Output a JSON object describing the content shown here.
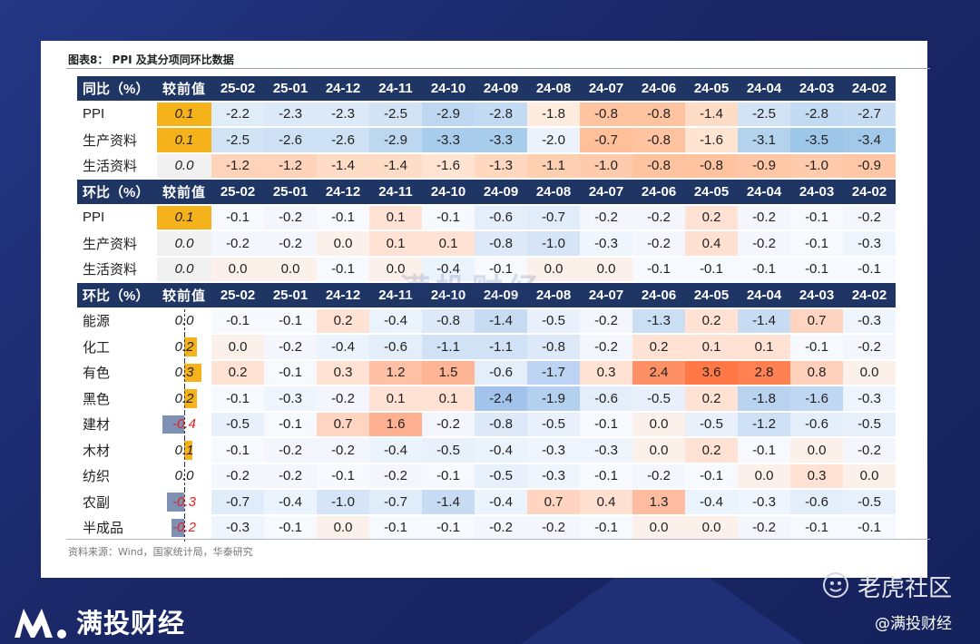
{
  "figure_title": "图表8：  PPI 及其分项同环比数据",
  "source_note": "资料来源：Wind，国家统计局，华泰研究",
  "watermark": "满投财经",
  "brand_name": "满投财经",
  "corner_logo_text": "老虎社区",
  "corner_handle": "@满投财经",
  "colors": {
    "header_bg": "#1f3564",
    "positive_prev": "#f6b21b",
    "negative_prev": "#7e90b4",
    "negative_text": "#e02020"
  },
  "chart_data": {
    "type": "table",
    "columns": [
      "25-02",
      "25-01",
      "24-12",
      "24-11",
      "24-10",
      "24-09",
      "24-08",
      "24-07",
      "24-06",
      "24-05",
      "24-04",
      "24-03",
      "24-02"
    ],
    "sections": [
      {
        "header": "同比（%）",
        "prev_label": "较前值",
        "rows": [
          {
            "label": "PPI",
            "prev": "0.1",
            "values": [
              -2.2,
              -2.3,
              -2.3,
              -2.5,
              -2.9,
              -2.8,
              -1.8,
              -0.8,
              -0.8,
              -1.4,
              -2.5,
              -2.8,
              -2.7
            ]
          },
          {
            "label": "生产资料",
            "prev": "0.1",
            "values": [
              -2.5,
              -2.6,
              -2.6,
              -2.9,
              -3.3,
              -3.3,
              -2.0,
              -0.7,
              -0.8,
              -1.6,
              -3.1,
              -3.5,
              -3.4
            ]
          },
          {
            "label": "生活资料",
            "prev": "0.0",
            "values": [
              -1.2,
              -1.2,
              -1.4,
              -1.4,
              -1.6,
              -1.3,
              -1.1,
              -1.0,
              -0.8,
              -0.8,
              -0.9,
              -1.0,
              -0.9
            ]
          }
        ]
      },
      {
        "header": "环比（%）",
        "prev_label": "较前值",
        "rows": [
          {
            "label": "PPI",
            "prev": "0.1",
            "values": [
              -0.1,
              -0.2,
              -0.1,
              0.1,
              -0.1,
              -0.6,
              -0.7,
              -0.2,
              -0.2,
              0.2,
              -0.2,
              -0.1,
              -0.2
            ]
          },
          {
            "label": "生产资料",
            "prev": "0.0",
            "values": [
              -0.2,
              -0.2,
              0.0,
              0.1,
              0.1,
              -0.8,
              -1.0,
              -0.3,
              -0.2,
              0.4,
              -0.2,
              -0.1,
              -0.3
            ]
          },
          {
            "label": "生活资料",
            "prev": "0.0",
            "values": [
              0.0,
              0.0,
              -0.1,
              0.0,
              -0.4,
              -0.1,
              0.0,
              0.0,
              -0.1,
              -0.1,
              -0.1,
              -0.1,
              -0.1
            ]
          }
        ]
      },
      {
        "header": "环比（%）",
        "prev_label": "较前值",
        "rows": [
          {
            "label": "能源",
            "prev": "0.0",
            "values": [
              -0.1,
              -0.1,
              0.2,
              -0.4,
              -0.8,
              -1.4,
              -0.5,
              -0.2,
              -1.3,
              0.2,
              -1.4,
              0.7,
              -0.3
            ]
          },
          {
            "label": "化工",
            "prev": "0.2",
            "values": [
              0.0,
              -0.2,
              -0.4,
              -0.6,
              -1.1,
              -1.1,
              -0.8,
              -0.2,
              0.2,
              0.1,
              0.1,
              -0.1,
              -0.2
            ]
          },
          {
            "label": "有色",
            "prev": "0.3",
            "values": [
              0.2,
              -0.1,
              0.3,
              1.2,
              1.5,
              -0.6,
              -1.7,
              0.3,
              2.4,
              3.6,
              2.8,
              0.8,
              0.0
            ]
          },
          {
            "label": "黑色",
            "prev": "0.2",
            "values": [
              -0.1,
              -0.3,
              -0.2,
              0.1,
              0.1,
              -2.4,
              -1.9,
              -0.6,
              -0.5,
              0.2,
              -1.8,
              -1.6,
              -0.3
            ]
          },
          {
            "label": "建材",
            "prev": "-0.4",
            "values": [
              -0.5,
              -0.1,
              0.7,
              1.6,
              -0.2,
              -0.8,
              -0.5,
              -0.1,
              0.0,
              -0.5,
              -1.2,
              -0.6,
              -0.5
            ]
          },
          {
            "label": "木材",
            "prev": "0.1",
            "values": [
              -0.1,
              -0.2,
              -0.2,
              -0.4,
              -0.5,
              -0.4,
              -0.3,
              -0.3,
              0.0,
              0.2,
              -0.1,
              0.0,
              -0.2
            ]
          },
          {
            "label": "纺织",
            "prev": "0.0",
            "values": [
              -0.2,
              -0.2,
              -0.1,
              -0.2,
              -0.1,
              -0.5,
              -0.3,
              -0.1,
              -0.2,
              -0.1,
              0.0,
              0.3,
              0.0
            ]
          },
          {
            "label": "农副",
            "prev": "-0.3",
            "values": [
              -0.7,
              -0.4,
              -1.0,
              -0.7,
              -1.4,
              -0.4,
              0.7,
              0.4,
              1.3,
              -0.4,
              -0.3,
              -0.6,
              -0.5
            ]
          },
          {
            "label": "半成品",
            "prev": "-0.2",
            "values": [
              -0.3,
              -0.1,
              0.0,
              -0.1,
              -0.1,
              -0.2,
              -0.2,
              -0.1,
              0.0,
              0.0,
              -0.2,
              -0.1,
              -0.1
            ]
          }
        ]
      }
    ]
  }
}
